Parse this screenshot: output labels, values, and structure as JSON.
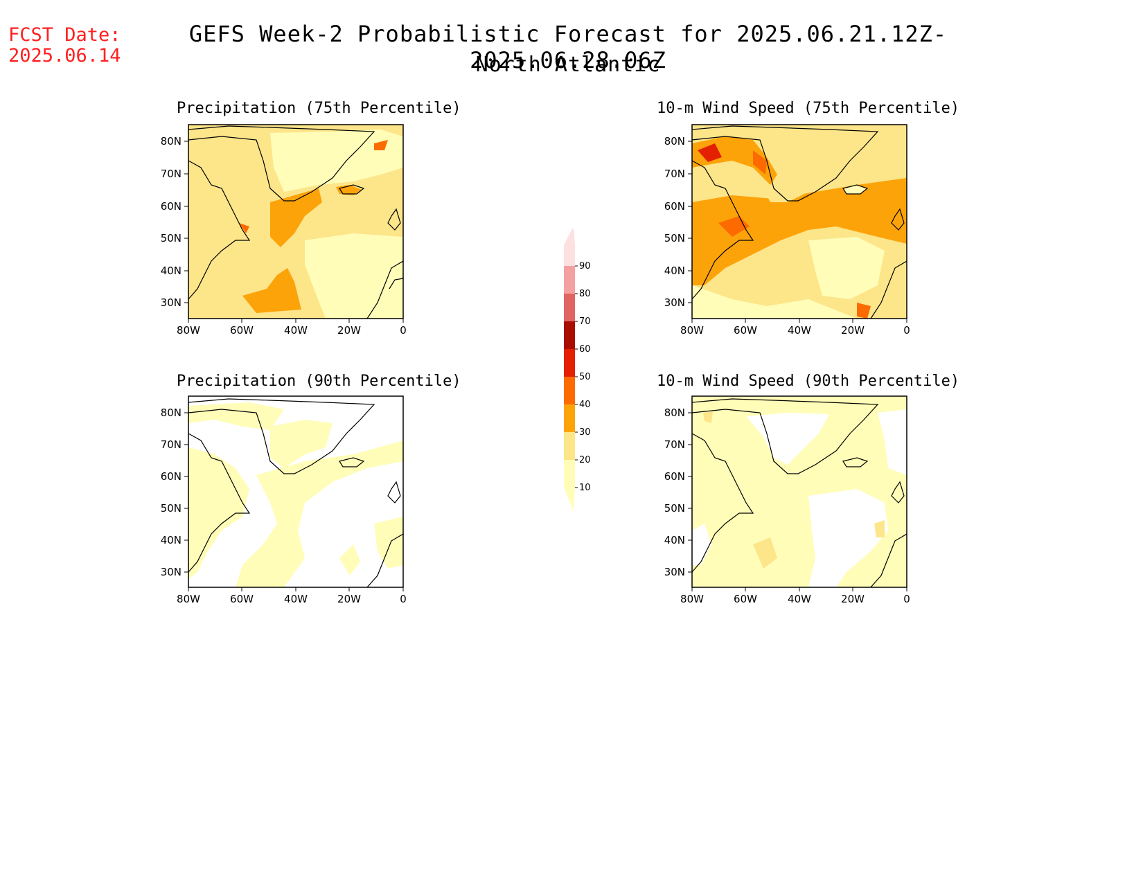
{
  "forecast_date": {
    "label": "FCST Date:",
    "value": "2025.06.14"
  },
  "title": "GEFS Week-2 Probabilistic Forecast for 2025.06.21.12Z-2025.06.28.06Z",
  "subtitle": "North Atlantic",
  "panels": [
    {
      "title": "Precipitation (75th Percentile)"
    },
    {
      "title": "10-m Wind Speed (75th Percentile)"
    },
    {
      "title": "Precipitation (90th Percentile)"
    },
    {
      "title": "10-m Wind Speed (90th Percentile)"
    }
  ],
  "lat_ticks": [
    "80N",
    "70N",
    "60N",
    "50N",
    "40N",
    "30N"
  ],
  "lon_ticks": [
    "80W",
    "60W",
    "40W",
    "20W",
    "0"
  ],
  "colorbar": {
    "levels": [
      "10",
      "20",
      "30",
      "40",
      "50",
      "60",
      "70",
      "80",
      "90"
    ],
    "colors": [
      "#fffdb8",
      "#fde58a",
      "#fda30a",
      "#fd6a00",
      "#e32000",
      "#a80d00",
      "#e06464",
      "#f4a0a0",
      "#fde0e0"
    ]
  },
  "colors": {
    "land_outline": "#000000",
    "fcst_date_text": "#ff2020"
  }
}
